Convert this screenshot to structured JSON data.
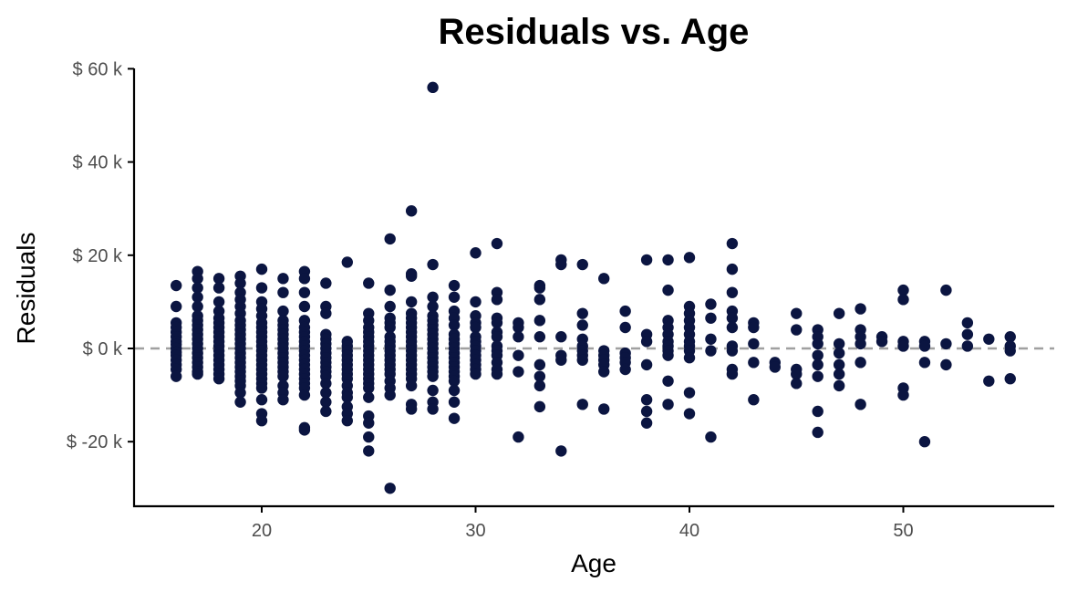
{
  "chart_data": {
    "type": "scatter",
    "title": "Residuals vs. Age",
    "xlabel": "Age",
    "ylabel": "Residuals",
    "xlim": [
      14.5,
      56.5
    ],
    "ylim": [
      -34000,
      60000
    ],
    "x_ticks": [
      {
        "value": 20,
        "label": "20"
      },
      {
        "value": 30,
        "label": "30"
      },
      {
        "value": 40,
        "label": "40"
      },
      {
        "value": 50,
        "label": "50"
      }
    ],
    "y_ticks": [
      {
        "value": 60000,
        "label": "$ 60 k"
      },
      {
        "value": 40000,
        "label": "$ 40 k"
      },
      {
        "value": 20000,
        "label": "$ 20 k"
      },
      {
        "value": 0,
        "label": "$ 0 k"
      },
      {
        "value": -20000,
        "label": "$ -20 k"
      }
    ],
    "reference_line": {
      "y": 0,
      "style": "dashed",
      "color": "#a0a0a0"
    },
    "grid": false,
    "legend": "none",
    "point_color": "#0b1541",
    "points": [
      {
        "age": 16,
        "values": [
          13.5,
          9,
          5.5,
          4.5,
          3.5,
          2.5,
          1.5,
          0.8,
          0,
          -0.8,
          -1.5,
          -2.5,
          -3.5,
          -4.5,
          -6
        ]
      },
      {
        "age": 17,
        "values": [
          16.5,
          15,
          13,
          11,
          9,
          7,
          6,
          5,
          4,
          3,
          2,
          1,
          0,
          -1,
          -2,
          -3,
          -4,
          -5,
          -5.5
        ]
      },
      {
        "age": 18,
        "values": [
          15,
          13,
          10,
          8,
          6.5,
          5.5,
          4.5,
          3.5,
          2.5,
          1.5,
          0.5,
          -0.5,
          -1.5,
          -2.5,
          -3.5,
          -4.5,
          -5.5,
          -6.5
        ]
      },
      {
        "age": 19,
        "values": [
          15.5,
          14,
          12,
          10.5,
          9,
          7.5,
          6,
          5,
          4,
          3,
          2,
          1,
          0,
          -1,
          -2,
          -3,
          -4,
          -5,
          -6,
          -7,
          -8,
          -9.5,
          -11.5
        ]
      },
      {
        "age": 20,
        "values": [
          17,
          13,
          10,
          8.5,
          7,
          5.5,
          4.5,
          3.5,
          2.5,
          1.5,
          0.5,
          -0.5,
          -1.5,
          -2.5,
          -3.5,
          -4.5,
          -5.5,
          -6.5,
          -7.5,
          -8.5,
          -11,
          -14,
          -15.5
        ]
      },
      {
        "age": 21,
        "values": [
          15,
          12,
          8,
          6,
          5,
          4,
          3,
          2,
          1,
          0,
          -1,
          -2,
          -3,
          -4,
          -5,
          -6,
          -8,
          -9.5,
          -11
        ]
      },
      {
        "age": 22,
        "values": [
          16.5,
          15,
          12,
          9,
          6,
          4.5,
          3.5,
          2.5,
          1.5,
          0.5,
          -0.5,
          -1.5,
          -2.5,
          -3.5,
          -4.5,
          -5.5,
          -6.5,
          -7.5,
          -8.5,
          -10,
          -17,
          -17.5
        ]
      },
      {
        "age": 23,
        "values": [
          14,
          9,
          7.5,
          3,
          2,
          1,
          0,
          -1,
          -2,
          -3,
          -4,
          -5,
          -6,
          -7.5,
          -9.5,
          -11.5,
          -13.5
        ]
      },
      {
        "age": 24,
        "values": [
          18.5,
          1.5,
          0.5,
          -0.5,
          -1.5,
          -2.5,
          -3.5,
          -4.5,
          -5.5,
          -6.5,
          -8,
          -9.5,
          -10.5,
          -12.5,
          -14,
          -15.5
        ]
      },
      {
        "age": 25,
        "values": [
          14,
          7.5,
          6,
          4.5,
          3.5,
          2.5,
          1.5,
          0.5,
          -0.5,
          -1.5,
          -2.5,
          -3.5,
          -4.5,
          -5.5,
          -6.5,
          -7.5,
          -8.5,
          -10.5,
          -14.5,
          -16,
          -19,
          -22
        ]
      },
      {
        "age": 26,
        "values": [
          23.5,
          12.5,
          9,
          6.5,
          5.5,
          4.5,
          2.5,
          1.5,
          0.5,
          -0.5,
          -1.5,
          -2.5,
          -3.5,
          -4.5,
          -5.5,
          -7,
          -8.5,
          -10,
          -30
        ]
      },
      {
        "age": 27,
        "values": [
          29.5,
          16,
          15.5,
          10,
          7.5,
          6.5,
          5.5,
          4.5,
          3.5,
          2.5,
          1.5,
          0.5,
          -0.5,
          -1.5,
          -2.5,
          -3.5,
          -4.5,
          -5.5,
          -6.5,
          -8,
          -12,
          -13
        ]
      },
      {
        "age": 28,
        "values": [
          56,
          18,
          11,
          9,
          7,
          6,
          5,
          4,
          3,
          2,
          1,
          0,
          -1,
          -2,
          -3,
          -4,
          -5,
          -6,
          -9,
          -11.5,
          -13
        ]
      },
      {
        "age": 29,
        "values": [
          13.5,
          11,
          8,
          6.5,
          5,
          3,
          2,
          1,
          0,
          -1,
          -2,
          -3,
          -4,
          -5,
          -6,
          -7,
          -9,
          -11.5,
          -15
        ]
      },
      {
        "age": 30,
        "values": [
          20.5,
          10,
          7,
          5.5,
          4.5,
          2.5,
          1.5,
          0.5,
          -0.5,
          -1.5,
          -2.5,
          -3.5,
          -4.5,
          -5.5
        ]
      },
      {
        "age": 31,
        "values": [
          22.5,
          12,
          10.5,
          6.5,
          5.5,
          3.5,
          2.5,
          0.5,
          -0.5,
          -1.5,
          -3,
          -4.5,
          -5.5
        ]
      },
      {
        "age": 32,
        "values": [
          5.5,
          4.5,
          2.5,
          -1.5,
          -5,
          -19
        ]
      },
      {
        "age": 33,
        "values": [
          13.5,
          13,
          10.5,
          6,
          2.5,
          -3.5,
          -6,
          -8,
          -12.5
        ]
      },
      {
        "age": 34,
        "values": [
          19,
          18,
          2.5,
          -1.5,
          -2.5,
          -22
        ]
      },
      {
        "age": 35,
        "values": [
          18,
          7.5,
          5,
          2,
          0.5,
          -0.5,
          -1.5,
          -2.5,
          -12
        ]
      },
      {
        "age": 36,
        "values": [
          15,
          -0.5,
          -1.5,
          -2.5,
          -3.5,
          -5,
          -13
        ]
      },
      {
        "age": 37,
        "values": [
          8,
          4.5,
          -1,
          -2,
          -3,
          -4.5
        ]
      },
      {
        "age": 38,
        "values": [
          19,
          3,
          1.5,
          -3.5,
          -11,
          -13.5,
          -16
        ]
      },
      {
        "age": 39,
        "values": [
          19,
          12.5,
          6,
          4.5,
          3,
          1.5,
          0.5,
          -0.5,
          -1.5,
          -7,
          -12
        ]
      },
      {
        "age": 40,
        "values": [
          19.5,
          9,
          7.5,
          6,
          4.5,
          3,
          1.5,
          0.5,
          -0.5,
          -2,
          -9.5,
          -14
        ]
      },
      {
        "age": 41,
        "values": [
          9.5,
          6.5,
          2,
          -0.5,
          -19
        ]
      },
      {
        "age": 42,
        "values": [
          22.5,
          17,
          12,
          8,
          6.5,
          4.5,
          0.5,
          -0.5,
          -4.5,
          -5.5
        ]
      },
      {
        "age": 43,
        "values": [
          5.5,
          4.5,
          1,
          -3,
          -11
        ]
      },
      {
        "age": 44,
        "values": [
          -3,
          -4
        ]
      },
      {
        "age": 45,
        "values": [
          7.5,
          4,
          -4.5,
          -5.5,
          -7.5
        ]
      },
      {
        "age": 46,
        "values": [
          4,
          2.5,
          1,
          -1.5,
          -3.5,
          -6,
          -13.5,
          -18
        ]
      },
      {
        "age": 47,
        "values": [
          7.5,
          1,
          -1,
          -3.5,
          -5.5,
          -8
        ]
      },
      {
        "age": 48,
        "values": [
          8.5,
          4,
          2.5,
          1,
          -3,
          -12
        ]
      },
      {
        "age": 49,
        "values": [
          2.5,
          1.5
        ]
      },
      {
        "age": 50,
        "values": [
          12.5,
          10.5,
          1.5,
          0.5,
          -8.5,
          -10
        ]
      },
      {
        "age": 51,
        "values": [
          1.5,
          0.5,
          -3,
          -20
        ]
      },
      {
        "age": 52,
        "values": [
          12.5,
          1,
          -3.5
        ]
      },
      {
        "age": 53,
        "values": [
          5.5,
          3,
          0.5
        ]
      },
      {
        "age": 54,
        "values": [
          2,
          -7
        ]
      },
      {
        "age": 55,
        "values": [
          2.5,
          0.5,
          -0.5,
          -6.5
        ]
      }
    ]
  }
}
